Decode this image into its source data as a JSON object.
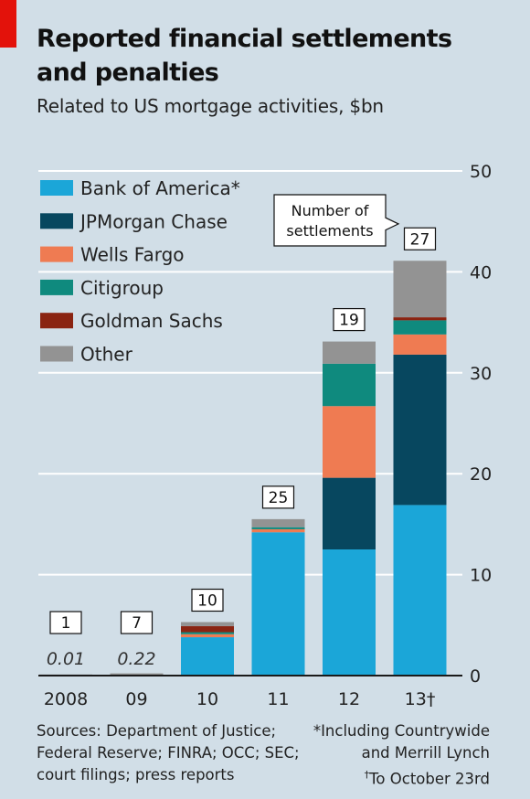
{
  "title_line1": "Reported financial settlements",
  "title_line2": "and penalties",
  "subtitle": "Related to US mortgage activities, $bn",
  "callout_line1": "Number of",
  "callout_line2": "settlements",
  "sources_lines": [
    "Sources: Department of Justice;",
    "Federal Reserve; FINRA; OCC; SEC;",
    "court filings; press reports"
  ],
  "notes": {
    "line1": "*Including Countrywide",
    "line2": "and Merrill Lynch",
    "dagger": "†",
    "line3": "To October 23rd"
  },
  "colors": {
    "background": "#d1dee7",
    "gridline": "#ffffff",
    "axis": "#1a1a1a",
    "brand_red": "#e3120b"
  },
  "chart_data": {
    "type": "bar",
    "stacked": true,
    "categories": [
      "2008",
      "09",
      "10",
      "11",
      "12",
      "13†"
    ],
    "ylim": [
      0,
      50
    ],
    "yticks": [
      0,
      10,
      20,
      30,
      40,
      50
    ],
    "y_axis_side": "right",
    "grid": true,
    "legend_position": "top-left",
    "series": [
      {
        "name": "Bank of America*",
        "color": "#1ba6d8",
        "values": [
          0,
          0,
          3.8,
          14.2,
          12.5,
          16.9
        ]
      },
      {
        "name": "JPMorgan Chase",
        "color": "#07475f",
        "values": [
          0,
          0,
          0,
          0,
          7.1,
          14.9
        ]
      },
      {
        "name": "Wells Fargo",
        "color": "#ef7b52",
        "values": [
          0,
          0,
          0.3,
          0.3,
          7.1,
          2.0
        ]
      },
      {
        "name": "Citigroup",
        "color": "#0f8a7e",
        "values": [
          0,
          0,
          0.2,
          0.2,
          4.2,
          1.4
        ]
      },
      {
        "name": "Goldman Sachs",
        "color": "#8a2412",
        "values": [
          0,
          0,
          0.6,
          0,
          0,
          0.3
        ]
      },
      {
        "name": "Other",
        "color": "#939393",
        "values": [
          0.01,
          0.22,
          0.4,
          0.8,
          2.2,
          5.6
        ]
      }
    ],
    "totals_labels": [
      "0.01",
      "0.22",
      "",
      "",
      "",
      ""
    ],
    "settlement_counts": [
      "1",
      "7",
      "10",
      "25",
      "19",
      "27"
    ]
  }
}
